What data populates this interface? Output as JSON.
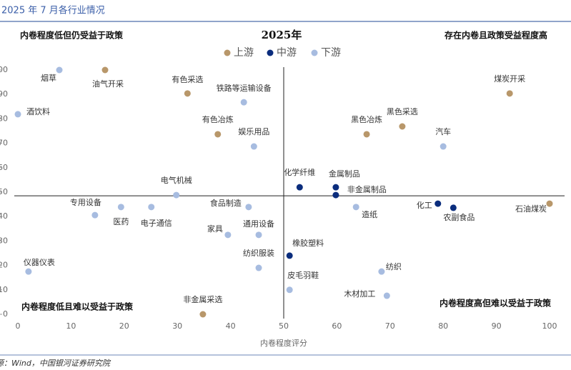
{
  "header": "2025 年 7 月各行业情况",
  "source": "源：Wind，中国银河证券研究院",
  "chart_data": {
    "type": "scatter",
    "title": "2025年",
    "x_label": "内卷程度评分",
    "annotations": [
      "内卷程度低但仍受益于政策",
      "存在内卷且政策受益程度高",
      "内卷程度低且难以受益于政策",
      "内卷程度高但难以受益于政策"
    ],
    "xlim": [
      0,
      100
    ],
    "ylim": [
      0,
      100
    ],
    "xticks": [
      0,
      10,
      20,
      30,
      40,
      50,
      60,
      70,
      80,
      90,
      100
    ],
    "yticks": [
      0,
      10,
      20,
      30,
      40,
      50,
      60,
      70,
      80,
      90,
      100
    ],
    "reference_lines": {
      "x": 50,
      "y": 48.5
    },
    "legend": "top",
    "series": [
      {
        "name": "上游",
        "color": "#b8976a",
        "labels": [
          "油气开采",
          "有色采选",
          "有色冶炼",
          "黑色冶炼",
          "黑色采选",
          "煤炭开采",
          "石油煤炭",
          "非金属采选"
        ],
        "x": [
          16.4,
          31.9,
          37.6,
          65.6,
          72.3,
          92.5,
          100,
          34.8
        ],
        "values": [
          100,
          90.4,
          73.7,
          73.7,
          76.9,
          90.4,
          45.3,
          0
        ]
      },
      {
        "name": "中游",
        "color": "#0b2d7d",
        "labels": [
          "化学纤维",
          "金属制品",
          "非金属制品",
          "化工",
          "农副食品",
          "橡胶塑料"
        ],
        "x": [
          53,
          59.8,
          59.8,
          79,
          81.9,
          51.1
        ],
        "values": [
          52,
          52,
          48.8,
          45.3,
          43.6,
          24
        ]
      },
      {
        "name": "下游",
        "color": "#a7bce0",
        "labels": [
          "烟草",
          "酒饮料",
          "铁路等运输设备",
          "娱乐用品",
          "汽车",
          "电气机械",
          "专用设备",
          "医药",
          "电子通信",
          "食品制造",
          "造纸",
          "家具",
          "通用设备",
          "仪器仪表",
          "纺织服装",
          "皮毛羽鞋",
          "纺织",
          "木材加工"
        ],
        "x": [
          7.8,
          0,
          42.5,
          44.4,
          80,
          29.8,
          14.5,
          19.4,
          25.1,
          43.4,
          63.6,
          39.5,
          45.3,
          2,
          45.3,
          51.1,
          68.4,
          69.4
        ],
        "values": [
          100,
          81.9,
          86.8,
          68.7,
          68.7,
          48.8,
          40.6,
          43.9,
          43.9,
          43.9,
          43.9,
          32.5,
          32.5,
          17.5,
          19,
          10,
          17.5,
          7.6
        ]
      }
    ]
  }
}
